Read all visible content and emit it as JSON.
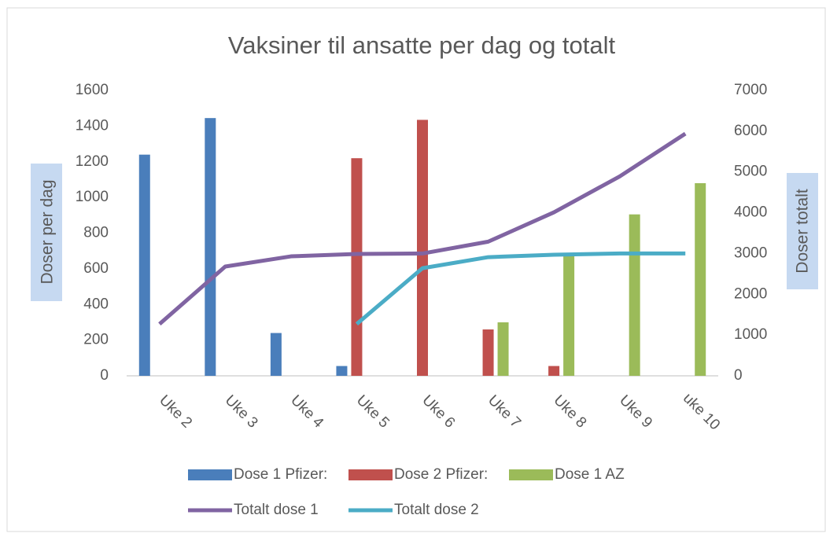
{
  "chart_data": {
    "type": "bar",
    "title": "Vaksiner til ansatte per dag og totalt",
    "y_label": "Doser per dag",
    "y2_label": "Doser totalt",
    "categories": [
      "Uke 2",
      "Uke 3",
      "Uke 4",
      "Uke 5",
      "Uke 6",
      "Uke 7",
      "Uke 8",
      "Uke 9",
      "uke 10"
    ],
    "series": [
      {
        "name": "Dose 1 Pfizer:",
        "type": "bar",
        "color": "#4a7ebb",
        "values": [
          1240,
          1445,
          240,
          55,
          null,
          null,
          null,
          null,
          null
        ]
      },
      {
        "name": "Dose 2 Pfizer:",
        "type": "bar",
        "color": "#c0504d",
        "values": [
          null,
          null,
          null,
          1220,
          1435,
          260,
          55,
          null,
          null
        ]
      },
      {
        "name": "Dose 1 AZ",
        "type": "bar",
        "color": "#9bbb59",
        "values": [
          null,
          null,
          null,
          null,
          null,
          300,
          680,
          905,
          1080
        ]
      },
      {
        "name": "Totalt dose 1",
        "type": "line",
        "axis": "y2",
        "color": "#8064a2",
        "values": [
          1270,
          2680,
          2930,
          2990,
          3000,
          3290,
          4010,
          4890,
          5940
        ]
      },
      {
        "name": "Totalt dose 2",
        "type": "line",
        "axis": "y2",
        "color": "#4bacc6",
        "values": [
          null,
          null,
          null,
          1270,
          2640,
          2910,
          2970,
          3000,
          3000
        ]
      }
    ],
    "ylim": [
      0,
      1600
    ],
    "yticks": [
      0,
      200,
      400,
      600,
      800,
      1000,
      1200,
      1400,
      1600
    ],
    "y2lim": [
      0,
      7000
    ],
    "y2ticks": [
      0,
      1000,
      2000,
      3000,
      4000,
      5000,
      6000,
      7000
    ],
    "grid": false
  }
}
